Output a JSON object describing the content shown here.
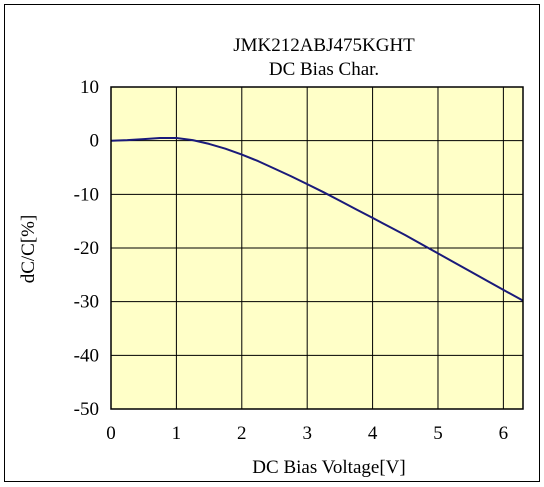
{
  "chart_data": {
    "type": "line",
    "title": "JMK212ABJ475KGHT",
    "subtitle": "DC Bias Char.",
    "xlabel": "DC Bias Voltage[V]",
    "ylabel": "dC/C[%]",
    "xlim": [
      0,
      6.3
    ],
    "ylim": [
      -50,
      10
    ],
    "x_ticks": [
      "0",
      "1",
      "2",
      "3",
      "4",
      "5",
      "6"
    ],
    "y_ticks": [
      "10",
      "0",
      "-10",
      "-20",
      "-30",
      "-40",
      "-50"
    ],
    "grid": true,
    "legend": "none",
    "colors": {
      "plot_background": "#ffffc8",
      "line": "#1a1a7a",
      "grid": "#000000"
    },
    "series": [
      {
        "x": [
          0,
          0.25,
          0.5,
          0.75,
          1.0,
          1.25,
          1.5,
          1.75,
          2.0,
          2.25,
          2.5,
          2.75,
          3.0,
          3.25,
          3.5,
          3.75,
          4.0,
          4.25,
          4.5,
          4.75,
          5.0,
          5.25,
          5.5,
          5.75,
          6.0,
          6.3
        ],
        "y": [
          0,
          0.1,
          0.3,
          0.5,
          0.5,
          0.1,
          -0.6,
          -1.5,
          -2.6,
          -3.8,
          -5.2,
          -6.6,
          -8.1,
          -9.6,
          -11.2,
          -12.8,
          -14.4,
          -16.0,
          -17.6,
          -19.3,
          -21.0,
          -22.7,
          -24.4,
          -26.1,
          -27.8,
          -29.8
        ]
      }
    ]
  }
}
